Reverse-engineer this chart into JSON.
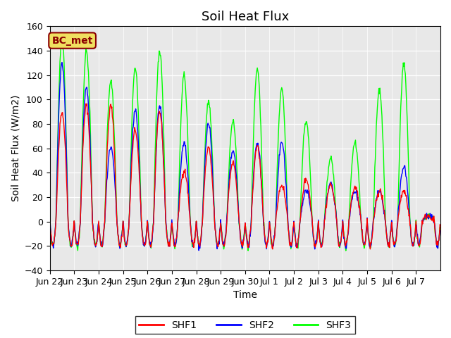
{
  "title": "Soil Heat Flux",
  "ylabel": "Soil Heat Flux (W/m2)",
  "xlabel": "Time",
  "ylim": [
    -40,
    160
  ],
  "yticks": [
    -40,
    -20,
    0,
    20,
    40,
    60,
    80,
    100,
    120,
    140,
    160
  ],
  "xtick_labels": [
    "Jun 22",
    "Jun 23",
    "Jun 24",
    "Jun 25",
    "Jun 26",
    "Jun 27",
    "Jun 28",
    "Jun 29",
    "Jun 30",
    "Jul 1",
    "Jul 2",
    "Jul 3",
    "Jul 4",
    "Jul 5",
    "Jul 6",
    "Jul 7"
  ],
  "line_colors": [
    "red",
    "blue",
    "lime"
  ],
  "line_labels": [
    "SHF1",
    "SHF2",
    "SHF3"
  ],
  "bc_met_label": "BC_met",
  "background_color": "#e8e8e8",
  "title_fontsize": 13,
  "label_fontsize": 10,
  "tick_fontsize": 9,
  "shf1_peaks": [
    90,
    95,
    95,
    75,
    90,
    42,
    60,
    48,
    62,
    30,
    35,
    30,
    28,
    25,
    25,
    5
  ],
  "shf2_peaks": [
    130,
    110,
    60,
    92,
    95,
    65,
    80,
    58,
    65,
    65,
    25,
    32,
    25,
    24,
    45,
    5
  ],
  "shf3_peaks": [
    150,
    140,
    115,
    125,
    140,
    120,
    98,
    82,
    125,
    108,
    83,
    52,
    65,
    108,
    130,
    5
  ],
  "night_val": -20
}
